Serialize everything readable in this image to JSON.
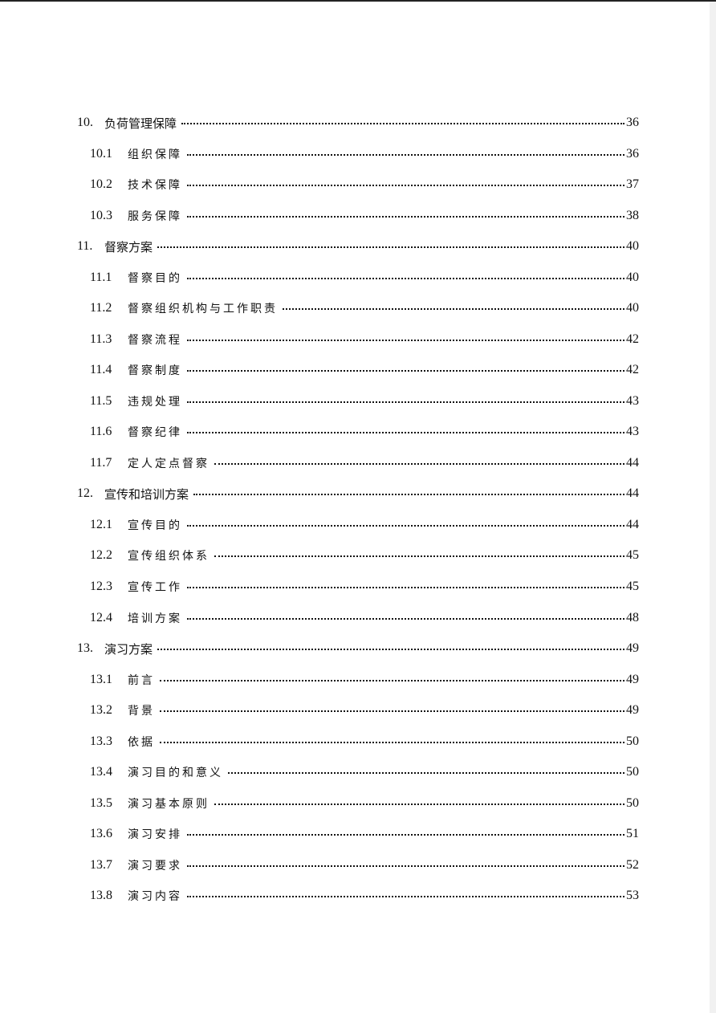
{
  "toc": [
    {
      "level": 1,
      "num": "10.",
      "title": "负荷管理保障",
      "page": "36"
    },
    {
      "level": 2,
      "num": "10.1",
      "title": "组织保障",
      "page": "36"
    },
    {
      "level": 2,
      "num": "10.2",
      "title": "技术保障",
      "page": "37"
    },
    {
      "level": 2,
      "num": "10.3",
      "title": "服务保障",
      "page": "38"
    },
    {
      "level": 1,
      "num": "11.",
      "title": "督察方案",
      "page": "40"
    },
    {
      "level": 2,
      "num": "11.1",
      "title": "督察目的",
      "page": "40"
    },
    {
      "level": 2,
      "num": "11.2",
      "title": "督察组织机构与工作职责",
      "page": "40"
    },
    {
      "level": 2,
      "num": "11.3",
      "title": "督察流程",
      "page": "42"
    },
    {
      "level": 2,
      "num": "11.4",
      "title": "督察制度",
      "page": "42"
    },
    {
      "level": 2,
      "num": "11.5",
      "title": "违规处理",
      "page": "43"
    },
    {
      "level": 2,
      "num": "11.6",
      "title": "督察纪律",
      "page": "43"
    },
    {
      "level": 2,
      "num": "11.7",
      "title": "定人定点督察",
      "page": "44"
    },
    {
      "level": 1,
      "num": "12.",
      "title": "宣传和培训方案",
      "page": "44"
    },
    {
      "level": 2,
      "num": "12.1",
      "title": "宣传目的",
      "page": "44"
    },
    {
      "level": 2,
      "num": "12.2",
      "title": "宣传组织体系",
      "page": "45"
    },
    {
      "level": 2,
      "num": "12.3",
      "title": "宣传工作",
      "page": "45"
    },
    {
      "level": 2,
      "num": "12.4",
      "title": "培训方案",
      "page": "48"
    },
    {
      "level": 1,
      "num": "13.",
      "title": "演习方案",
      "page": "49"
    },
    {
      "level": 2,
      "num": "13.1",
      "title": "前言",
      "page": "49"
    },
    {
      "level": 2,
      "num": "13.2",
      "title": "背景",
      "page": "49"
    },
    {
      "level": 2,
      "num": "13.3",
      "title": "依据",
      "page": "50"
    },
    {
      "level": 2,
      "num": "13.4",
      "title": "演习目的和意义",
      "page": "50"
    },
    {
      "level": 2,
      "num": "13.5",
      "title": "演习基本原则",
      "page": "50"
    },
    {
      "level": 2,
      "num": "13.6",
      "title": "演习安排",
      "page": "51"
    },
    {
      "level": 2,
      "num": "13.7",
      "title": "演习要求",
      "page": "52"
    },
    {
      "level": 2,
      "num": "13.8",
      "title": "演习内容",
      "page": "53"
    }
  ]
}
